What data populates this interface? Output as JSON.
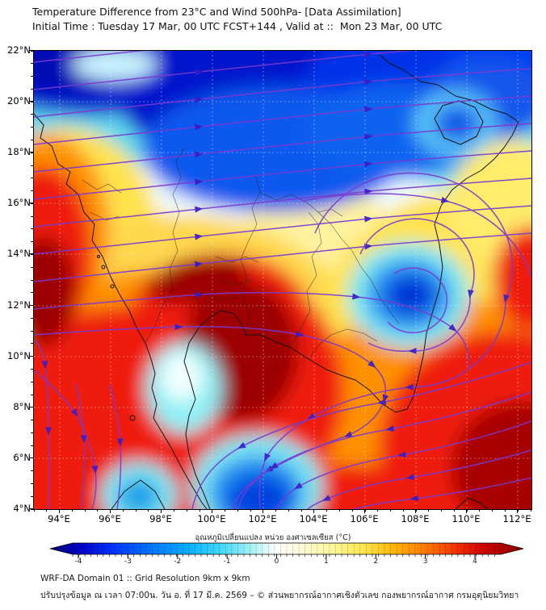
{
  "header": {
    "line1": "Temperature Difference from 23°C and Wind 500hPa- [Data Assimilation]",
    "line2": "Initial Time : Tuesday 17 Mar, 00 UTC FCST+144 , Valid at ::  Mon 23 Mar, 00 UTC"
  },
  "map": {
    "lat_ticks": [
      "22°N",
      "20°N",
      "18°N",
      "16°N",
      "14°N",
      "12°N",
      "10°N",
      "8°N",
      "6°N",
      "4°N"
    ],
    "lon_ticks": [
      "94°E",
      "96°E",
      "98°E",
      "100°E",
      "102°E",
      "104°E",
      "106°E",
      "108°E",
      "110°E",
      "112°E"
    ],
    "field_variable": "temperature difference from 23°C",
    "wind_level": "500hPa",
    "value_range_c": [
      -4,
      4
    ],
    "streamline_color": "#7a3ad0",
    "negative_color": "#0000c8",
    "positive_color": "#cc0000"
  },
  "colorbar": {
    "label": "อุณหภูมิเปลี่ยนแปลง หน่วย องศาเซลเซียส (°C)",
    "ticks": [
      "-4",
      "-3",
      "-2",
      "-1",
      "0",
      "1",
      "2",
      "3",
      "4"
    ],
    "min": -4,
    "max": 4
  },
  "footer": {
    "line1": "WRF-DA Domain 01 :: Grid Resolution 9km x 9km",
    "line2": "ปรับปรุงข้อมูล ณ เวลา 07:00น. วัน อ. ที่ 17 มี.ค. 2569 – © ส่วนพยากรณ์อากาศเชิงตัวเลข กองพยากรณ์อากาศ กรมอุตุนิยมวิทยา"
  }
}
